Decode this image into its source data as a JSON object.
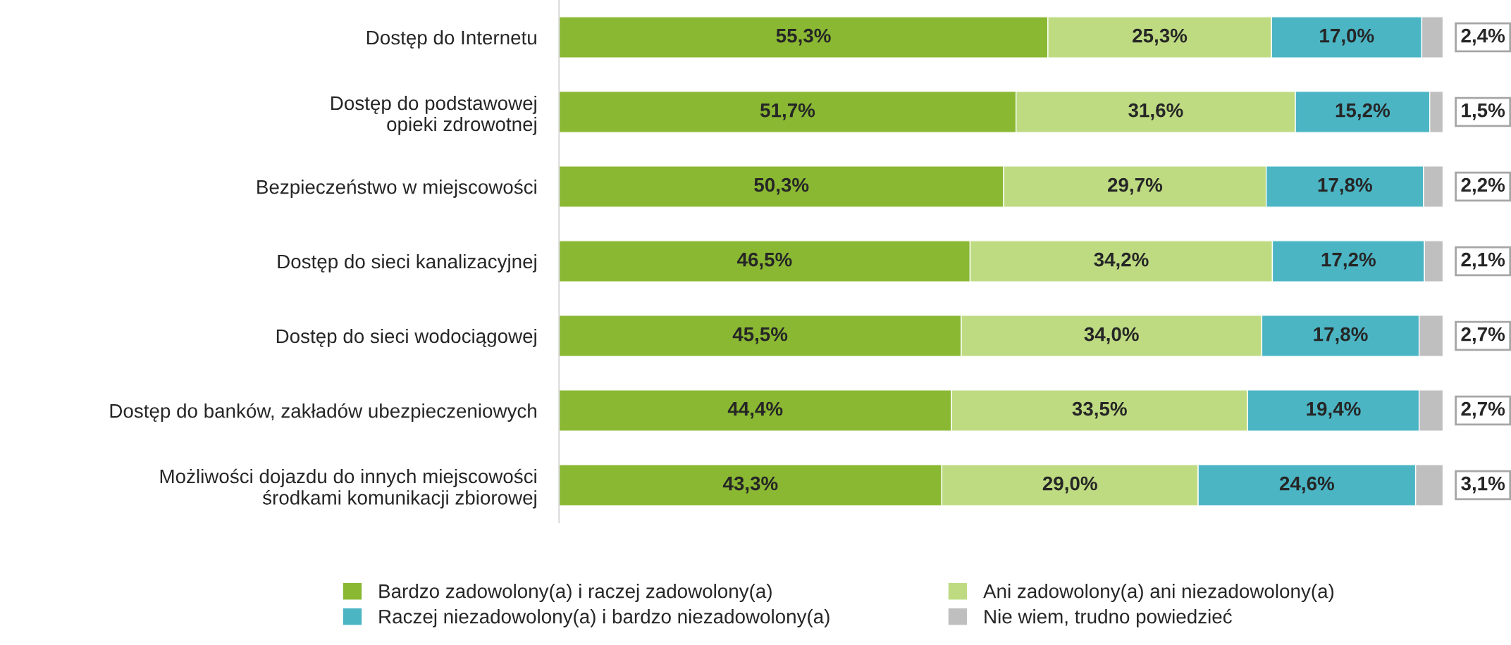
{
  "chart_data": {
    "type": "bar",
    "orientation": "horizontal",
    "stacked": true,
    "legend": "bottom",
    "categories": [
      "Dostęp do Internetu",
      "Dostęp do podstawowej\nopieki zdrowotnej",
      "Bezpieczeństwo w miejscowości",
      "Dostęp do sieci kanalizacyjnej",
      "Dostęp do sieci wodociągowej",
      "Dostęp do banków, zakładów ubezpieczeniowych",
      "Możliwości dojazdu do innych miejscowości\nśrodkami komunikacji zbiorowej"
    ],
    "series": [
      {
        "name": "Bardzo zadowolony(a) i raczej zadowolony(a)",
        "color": "#8ab833",
        "values": [
          55.3,
          51.7,
          50.3,
          46.5,
          45.5,
          44.4,
          43.3
        ],
        "value_labels": [
          "55,3%",
          "51,7%",
          "50,3%",
          "46,5%",
          "45,5%",
          "44,4%",
          "43,3%"
        ]
      },
      {
        "name": "Ani zadowolony(a) ani niezadowolony(a)",
        "color": "#bedb82",
        "values": [
          25.3,
          31.6,
          29.7,
          34.2,
          34.0,
          33.5,
          29.0
        ],
        "value_labels": [
          "25,3%",
          "31,6%",
          "29,7%",
          "34,2%",
          "34,0%",
          "33,5%",
          "29,0%"
        ]
      },
      {
        "name": "Raczej niezadowolony(a) i bardzo niezadowolony(a)",
        "color": "#4bb5c4",
        "values": [
          17.0,
          15.2,
          17.8,
          17.2,
          17.8,
          19.4,
          24.6
        ],
        "value_labels": [
          "17,0%",
          "15,2%",
          "17,8%",
          "17,2%",
          "17,8%",
          "19,4%",
          "24,6%"
        ]
      },
      {
        "name": "Nie wiem, trudno powiedzieć",
        "color": "#bfbfbf",
        "values": [
          2.4,
          1.5,
          2.2,
          2.1,
          2.7,
          2.7,
          3.1
        ],
        "value_labels": [
          "2,4%",
          "1,5%",
          "2,2%",
          "2,1%",
          "2,7%",
          "2,7%",
          "3,1%"
        ]
      }
    ]
  }
}
